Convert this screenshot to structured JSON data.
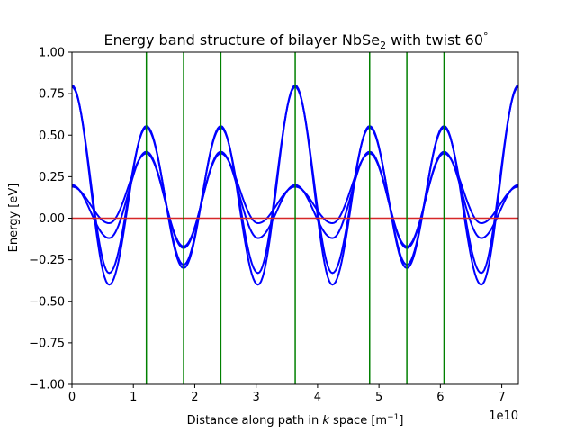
{
  "chart_data": {
    "type": "line",
    "title": "Energy band structure of bilayer NbSe",
    "title_sub": "2",
    "title_suffix": " with twist 60",
    "title_degree": "°",
    "xlabel": "Distance along path in ",
    "xlabel_k": "k",
    "xlabel_mid": " space [m",
    "xlabel_exp": "−1",
    "xlabel_end": "]",
    "x_offset_text": "1e10",
    "ylabel": "Energy [eV]",
    "xlim": [
      0,
      7.27
    ],
    "ylim": [
      -1.0,
      1.0
    ],
    "x_scale_factor": "1e10",
    "xticks": [
      0,
      1,
      2,
      3,
      4,
      5,
      6,
      7
    ],
    "xtick_labels": [
      "0",
      "1",
      "2",
      "3",
      "4",
      "5",
      "6",
      "7"
    ],
    "yticks": [
      -1.0,
      -0.75,
      -0.5,
      -0.25,
      0.0,
      0.25,
      0.5,
      0.75,
      1.0
    ],
    "ytick_labels": [
      "−1.00",
      "−0.75",
      "−0.50",
      "−0.25",
      "0.00",
      "0.25",
      "0.50",
      "0.75",
      "1.00"
    ],
    "fermi_level": 0.0,
    "fermi_color": "#d62728",
    "vlines": [
      1.212,
      1.818,
      2.424,
      3.636,
      4.848,
      5.454,
      6.06
    ],
    "vline_color": "#008000",
    "band_color": "#0000ff",
    "series": [
      {
        "x": [
          0,
          0.606,
          1.212,
          1.818,
          2.424,
          3.03,
          3.636,
          4.242,
          4.848,
          5.454,
          6.06,
          6.666,
          7.27
        ],
        "y": [
          0.8,
          -0.4,
          0.555,
          -0.3,
          0.555,
          -0.4,
          0.8,
          -0.4,
          0.555,
          -0.3,
          0.555,
          -0.4,
          0.8
        ]
      },
      {
        "x": [
          0,
          0.606,
          1.212,
          1.818,
          2.424,
          3.03,
          3.636,
          4.242,
          4.848,
          5.454,
          6.06,
          6.666,
          7.27
        ],
        "y": [
          0.79,
          -0.33,
          0.545,
          -0.28,
          0.545,
          -0.33,
          0.79,
          -0.33,
          0.545,
          -0.28,
          0.545,
          -0.33,
          0.79
        ]
      },
      {
        "x": [
          0,
          0.606,
          1.212,
          1.818,
          2.424,
          3.03,
          3.636,
          4.242,
          4.848,
          5.454,
          6.06,
          6.666,
          7.27
        ],
        "y": [
          0.2,
          -0.12,
          0.4,
          -0.18,
          0.4,
          -0.12,
          0.2,
          -0.12,
          0.4,
          -0.18,
          0.4,
          -0.12,
          0.2
        ]
      },
      {
        "x": [
          0,
          0.606,
          1.212,
          1.818,
          2.424,
          3.03,
          3.636,
          4.242,
          4.848,
          5.454,
          6.06,
          6.666,
          7.27
        ],
        "y": [
          0.19,
          -0.03,
          0.39,
          -0.17,
          0.39,
          -0.03,
          0.19,
          -0.03,
          0.39,
          -0.17,
          0.39,
          -0.03,
          0.19
        ]
      }
    ],
    "grid": false
  }
}
